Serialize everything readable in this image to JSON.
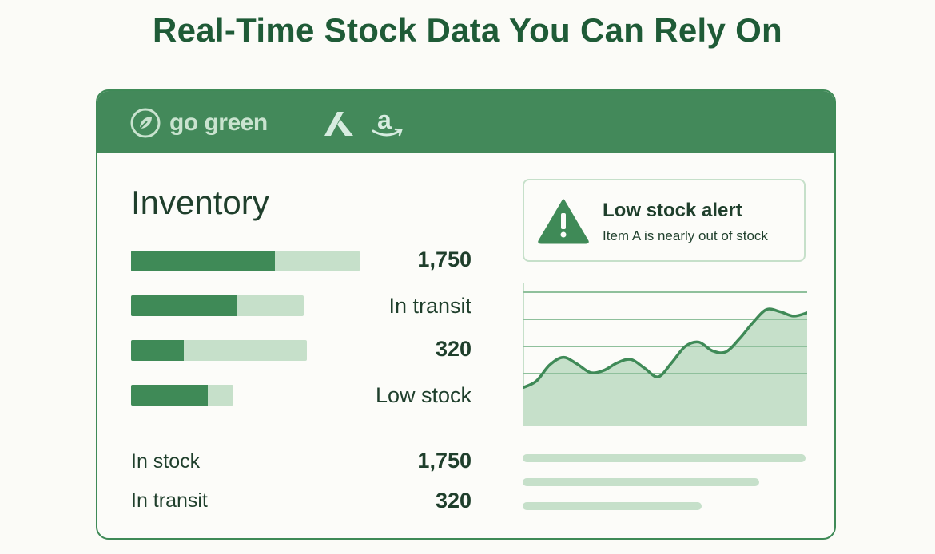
{
  "headline": "Real-Time Stock Data You Can Rely On",
  "header": {
    "brand_name": "go green",
    "logos": [
      "leaf-logo",
      "a-logo",
      "amazon-logo"
    ],
    "amazon_letter": "a"
  },
  "colors": {
    "primary": "#43895a",
    "primary_dark": "#1f5b37",
    "light_green": "#c6e0ca",
    "text": "#1f3f2c"
  },
  "inventory": {
    "title": "Inventory",
    "bars": [
      {
        "fill": 0.63,
        "label": "1,750"
      },
      {
        "fill": 0.61,
        "label": "In transit"
      },
      {
        "fill": 0.3,
        "label": "320"
      },
      {
        "fill": 0.75,
        "label": "Low stock"
      }
    ],
    "summary": [
      {
        "label": "In stock",
        "value": "1,750"
      },
      {
        "label": "In transit",
        "value": "320"
      }
    ]
  },
  "alert": {
    "icon": "warning-icon",
    "title": "Low stock alert",
    "message": "Item A is nearly out of stock"
  },
  "chart_data": {
    "type": "area",
    "grid": true,
    "series": [
      {
        "values": [
          12,
          18,
          33,
          40,
          34,
          26,
          28,
          35,
          38,
          30,
          22,
          35,
          50,
          54,
          46,
          45,
          57,
          72,
          84,
          82,
          78,
          81
        ]
      }
    ],
    "ylim": [
      0,
      100
    ]
  }
}
